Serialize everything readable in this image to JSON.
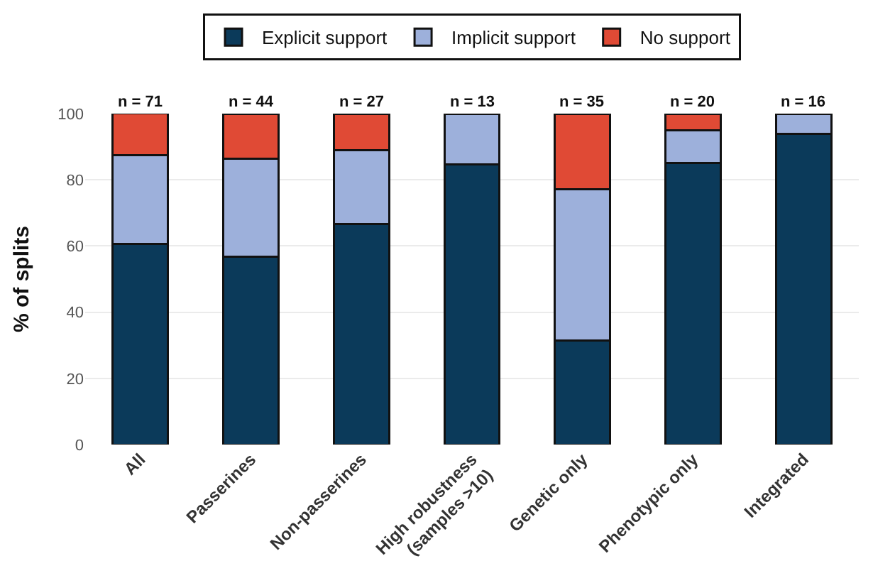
{
  "chart_data": {
    "type": "bar",
    "stacked": true,
    "ylabel": "% of splits",
    "categories": [
      "All",
      "Passerines",
      "Non-passerines",
      "High robustness\n(samples >10)",
      "Genetic only",
      "Phenotypic only",
      "Integrated"
    ],
    "series": [
      {
        "name": "Explicit support",
        "color": "#0b3a5a",
        "values": [
          60.6,
          56.8,
          66.7,
          84.6,
          31.4,
          85,
          93.8
        ]
      },
      {
        "name": "Implicit support",
        "color": "#9db0db",
        "values": [
          26.8,
          29.5,
          22.2,
          15.4,
          45.7,
          10,
          6.2
        ]
      },
      {
        "name": "No support",
        "color": "#e04a35",
        "values": [
          12.7,
          13.6,
          11.1,
          null,
          22.9,
          5,
          null
        ]
      }
    ],
    "ylim": [
      0,
      100
    ],
    "yticks": [
      0,
      20,
      40,
      60,
      80,
      100
    ],
    "grid": "y",
    "legend": "top",
    "annotations": [
      {
        "text": "n = 71",
        "x": "All",
        "y": 100
      },
      {
        "text": "n = 44",
        "x": "Passerines",
        "y": 100
      },
      {
        "text": "n = 27",
        "x": "Non-passerines",
        "y": 100
      },
      {
        "text": "n = 13",
        "x": "High robustness\n(samples >10)",
        "y": 100
      },
      {
        "text": "n = 35",
        "x": "Genetic only",
        "y": 100
      },
      {
        "text": "n = 20",
        "x": "Phenotypic only",
        "y": 100
      },
      {
        "text": "n = 16",
        "x": "Integrated",
        "y": 100
      }
    ]
  }
}
